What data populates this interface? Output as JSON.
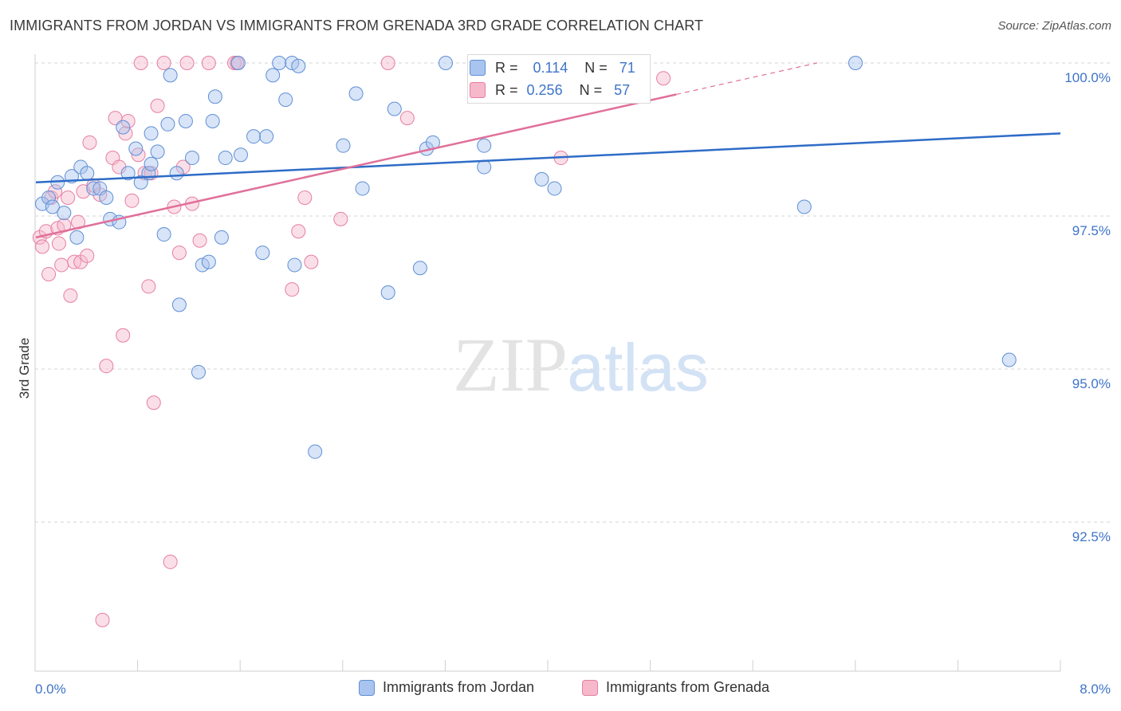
{
  "title": "IMMIGRANTS FROM JORDAN VS IMMIGRANTS FROM GRENADA 3RD GRADE CORRELATION CHART",
  "source": "Source: ZipAtlas.com",
  "watermark": {
    "zip": "ZIP",
    "atlas": "atlas"
  },
  "colors": {
    "blue_fill": "#a9c4ee",
    "blue_stroke": "#5e8fd6",
    "blue_line": "#2e6cc7",
    "pink_fill": "#f6b8cb",
    "pink_stroke": "#e57fa1",
    "pink_line": "#e0709a",
    "axis_text": "#3f74c8",
    "grid": "#d6d6d6"
  },
  "stats": [
    {
      "r_label": "R =",
      "r_value": "0.114",
      "n_label": "N =",
      "n_value": "71"
    },
    {
      "r_label": "R =",
      "r_value": "0.256",
      "n_label": "N =",
      "n_value": "57"
    }
  ],
  "chart_data": {
    "type": "scatter",
    "title": "IMMIGRANTS FROM JORDAN VS IMMIGRANTS FROM GRENADA 3RD GRADE CORRELATION CHART",
    "xlabel": "",
    "ylabel": "3rd Grade",
    "xlim": [
      0.0,
      8.0
    ],
    "ylim": [
      90.0,
      100.5
    ],
    "x_tick_labels": [
      {
        "value": 0.0,
        "label": "0.0%"
      },
      {
        "value": 8.0,
        "label": "8.0%"
      }
    ],
    "y_tick_labels": [
      {
        "value": 100.0,
        "label": "100.0%"
      },
      {
        "value": 97.5,
        "label": "97.5%"
      },
      {
        "value": 95.0,
        "label": "95.0%"
      },
      {
        "value": 92.5,
        "label": "92.5%"
      }
    ],
    "legend": [
      "Immigrants from Jordan",
      "Immigrants from Grenada"
    ],
    "series": [
      {
        "name": "Immigrants from Jordan",
        "trend": {
          "x": [
            0.0,
            8.0
          ],
          "y": [
            98.05,
            98.85
          ],
          "dashed_from": null
        },
        "points": [
          [
            0.05,
            97.7
          ],
          [
            0.1,
            97.8
          ],
          [
            0.13,
            97.65
          ],
          [
            0.17,
            98.05
          ],
          [
            0.22,
            97.55
          ],
          [
            0.28,
            98.15
          ],
          [
            0.32,
            97.15
          ],
          [
            0.35,
            98.3
          ],
          [
            0.4,
            98.2
          ],
          [
            0.45,
            97.95
          ],
          [
            0.5,
            97.95
          ],
          [
            0.55,
            97.8
          ],
          [
            0.58,
            97.45
          ],
          [
            0.65,
            97.4
          ],
          [
            0.68,
            98.95
          ],
          [
            0.72,
            98.2
          ],
          [
            0.78,
            98.6
          ],
          [
            0.82,
            98.05
          ],
          [
            0.88,
            98.2
          ],
          [
            0.9,
            98.35
          ],
          [
            0.9,
            98.85
          ],
          [
            0.95,
            98.55
          ],
          [
            1.0,
            97.2
          ],
          [
            1.03,
            99.0
          ],
          [
            1.05,
            99.8
          ],
          [
            1.1,
            98.2
          ],
          [
            1.12,
            96.05
          ],
          [
            1.17,
            99.05
          ],
          [
            1.22,
            98.45
          ],
          [
            1.27,
            94.95
          ],
          [
            1.3,
            96.7
          ],
          [
            1.35,
            96.75
          ],
          [
            1.38,
            99.05
          ],
          [
            1.4,
            99.45
          ],
          [
            1.45,
            97.15
          ],
          [
            1.48,
            98.45
          ],
          [
            1.58,
            100.0
          ],
          [
            1.6,
            98.5
          ],
          [
            1.7,
            98.8
          ],
          [
            1.77,
            96.9
          ],
          [
            1.8,
            98.8
          ],
          [
            1.85,
            99.8
          ],
          [
            1.9,
            100.0
          ],
          [
            1.95,
            99.4
          ],
          [
            2.0,
            100.0
          ],
          [
            2.02,
            96.7
          ],
          [
            2.05,
            99.95
          ],
          [
            2.18,
            93.65
          ],
          [
            2.4,
            98.65
          ],
          [
            2.5,
            99.5
          ],
          [
            2.55,
            97.95
          ],
          [
            2.75,
            96.25
          ],
          [
            2.8,
            99.25
          ],
          [
            3.0,
            96.65
          ],
          [
            3.05,
            98.6
          ],
          [
            3.1,
            98.7
          ],
          [
            3.2,
            100.0
          ],
          [
            3.5,
            98.3
          ],
          [
            3.5,
            98.65
          ],
          [
            3.95,
            98.1
          ],
          [
            4.05,
            97.95
          ],
          [
            4.35,
            100.0
          ],
          [
            6.0,
            97.65
          ],
          [
            6.4,
            100.0
          ],
          [
            7.6,
            95.15
          ]
        ]
      },
      {
        "name": "Immigrants from Grenada",
        "trend": {
          "x": [
            0.0,
            6.1
          ],
          "y": [
            97.15,
            100.0
          ],
          "dashed_from": 5.0
        },
        "points": [
          [
            0.03,
            97.15
          ],
          [
            0.05,
            97.0
          ],
          [
            0.08,
            97.25
          ],
          [
            0.1,
            96.55
          ],
          [
            0.12,
            97.8
          ],
          [
            0.15,
            97.9
          ],
          [
            0.17,
            97.3
          ],
          [
            0.18,
            97.05
          ],
          [
            0.2,
            96.7
          ],
          [
            0.22,
            97.35
          ],
          [
            0.25,
            97.8
          ],
          [
            0.27,
            96.2
          ],
          [
            0.3,
            96.75
          ],
          [
            0.33,
            97.4
          ],
          [
            0.35,
            96.75
          ],
          [
            0.37,
            97.9
          ],
          [
            0.4,
            96.85
          ],
          [
            0.42,
            98.7
          ],
          [
            0.45,
            98.0
          ],
          [
            0.5,
            97.85
          ],
          [
            0.52,
            90.9
          ],
          [
            0.55,
            95.05
          ],
          [
            0.6,
            98.45
          ],
          [
            0.62,
            99.1
          ],
          [
            0.65,
            98.3
          ],
          [
            0.68,
            95.55
          ],
          [
            0.7,
            98.85
          ],
          [
            0.72,
            99.05
          ],
          [
            0.75,
            97.75
          ],
          [
            0.8,
            98.5
          ],
          [
            0.82,
            100.0
          ],
          [
            0.85,
            98.2
          ],
          [
            0.88,
            96.35
          ],
          [
            0.9,
            98.2
          ],
          [
            0.92,
            94.45
          ],
          [
            0.95,
            99.3
          ],
          [
            1.0,
            100.0
          ],
          [
            1.05,
            91.85
          ],
          [
            1.08,
            97.65
          ],
          [
            1.12,
            96.9
          ],
          [
            1.15,
            98.3
          ],
          [
            1.18,
            100.0
          ],
          [
            1.22,
            97.7
          ],
          [
            1.28,
            97.1
          ],
          [
            1.35,
            100.0
          ],
          [
            1.55,
            100.0
          ],
          [
            1.57,
            100.0
          ],
          [
            2.0,
            96.3
          ],
          [
            2.05,
            97.25
          ],
          [
            2.1,
            97.8
          ],
          [
            2.15,
            96.75
          ],
          [
            2.38,
            97.45
          ],
          [
            2.75,
            100.0
          ],
          [
            2.9,
            99.1
          ],
          [
            4.1,
            98.45
          ],
          [
            4.9,
            99.75
          ]
        ]
      }
    ]
  }
}
